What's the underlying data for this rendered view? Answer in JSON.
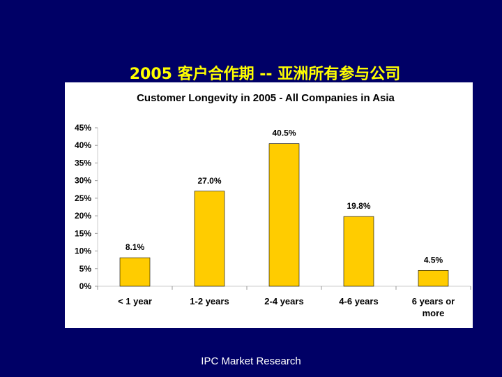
{
  "slide": {
    "title": "2005 客户合作期 -- 亚洲所有参与公司",
    "footer": "IPC Market Research"
  },
  "colors": {
    "background": "#000066",
    "title": "#ffff00",
    "bar": "#ffcc00",
    "panel": "#ffffff",
    "footer": "#ffffff"
  },
  "chart_data": {
    "type": "bar",
    "title": "Customer Longevity in 2005 - All Companies in Asia",
    "categories": [
      "< 1 year",
      "1-2 years",
      "2-4 years",
      "4-6 years",
      "6 years or more"
    ],
    "category_lines": [
      [
        "< 1 year"
      ],
      [
        "1-2 years"
      ],
      [
        "2-4 years"
      ],
      [
        "4-6 years"
      ],
      [
        "6 years or",
        "more"
      ]
    ],
    "values": [
      8.1,
      27.0,
      40.5,
      19.8,
      4.5
    ],
    "data_labels": [
      "8.1%",
      "27.0%",
      "40.5%",
      "19.8%",
      "4.5%"
    ],
    "yticks": [
      0,
      5,
      10,
      15,
      20,
      25,
      30,
      35,
      40,
      45
    ],
    "ytick_labels": [
      "0%",
      "5%",
      "10%",
      "15%",
      "20%",
      "25%",
      "30%",
      "35%",
      "40%",
      "45%"
    ],
    "ylim": [
      0,
      45
    ],
    "xlabel": "",
    "ylabel": "",
    "grid": false,
    "legend": "none"
  }
}
